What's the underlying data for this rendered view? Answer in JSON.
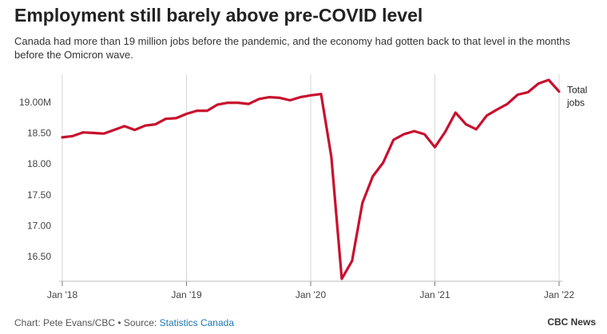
{
  "chart_data": {
    "type": "line",
    "title": "Employment still barely above pre-COVID level",
    "subtitle": "Canada had more than 19 million jobs before the pandemic, and the economy had gotten back to that level in the months before the Omicron wave.",
    "series_label_lines": [
      "Total",
      "jobs"
    ],
    "color": "#c8102e",
    "ylim": [
      16.1,
      19.45
    ],
    "y_ticks": [
      16.5,
      17.0,
      17.5,
      18.0,
      18.5,
      19.0
    ],
    "y_tick_labels": [
      "16.50",
      "17.00",
      "17.50",
      "18.00",
      "18.50",
      "19.00M"
    ],
    "x_ticks": [
      "Jan '18",
      "Jan '19",
      "Jan '20",
      "Jan '21",
      "Jan '22"
    ],
    "grid": "vertical",
    "series": [
      {
        "x": [
          "2018-01",
          "2018-02",
          "2018-03",
          "2018-04",
          "2018-05",
          "2018-06",
          "2018-07",
          "2018-08",
          "2018-09",
          "2018-10",
          "2018-11",
          "2018-12",
          "2019-01",
          "2019-02",
          "2019-03",
          "2019-04",
          "2019-05",
          "2019-06",
          "2019-07",
          "2019-08",
          "2019-09",
          "2019-10",
          "2019-11",
          "2019-12",
          "2020-01",
          "2020-02",
          "2020-03",
          "2020-04",
          "2020-05",
          "2020-06",
          "2020-07",
          "2020-08",
          "2020-09",
          "2020-10",
          "2020-11",
          "2020-12",
          "2021-01",
          "2021-02",
          "2021-03",
          "2021-04",
          "2021-05",
          "2021-06",
          "2021-07",
          "2021-08",
          "2021-09",
          "2021-10",
          "2021-11",
          "2021-12",
          "2022-01"
        ],
        "values": [
          18.43,
          18.45,
          18.51,
          18.5,
          18.49,
          18.55,
          18.61,
          18.55,
          18.62,
          18.64,
          18.73,
          18.74,
          18.81,
          18.86,
          18.86,
          18.96,
          18.99,
          18.99,
          18.97,
          19.05,
          19.08,
          19.07,
          19.03,
          19.08,
          19.11,
          19.13,
          18.11,
          16.14,
          16.43,
          17.37,
          17.8,
          18.02,
          18.39,
          18.48,
          18.53,
          18.48,
          18.27,
          18.52,
          18.83,
          18.64,
          18.56,
          18.78,
          18.88,
          18.97,
          19.12,
          19.16,
          19.3,
          19.36,
          19.17
        ]
      }
    ]
  },
  "footer": {
    "credit": "Chart: Pete Evans/CBC • Source: ",
    "source_link": "Statistics Canada",
    "brand": "CBC News"
  }
}
